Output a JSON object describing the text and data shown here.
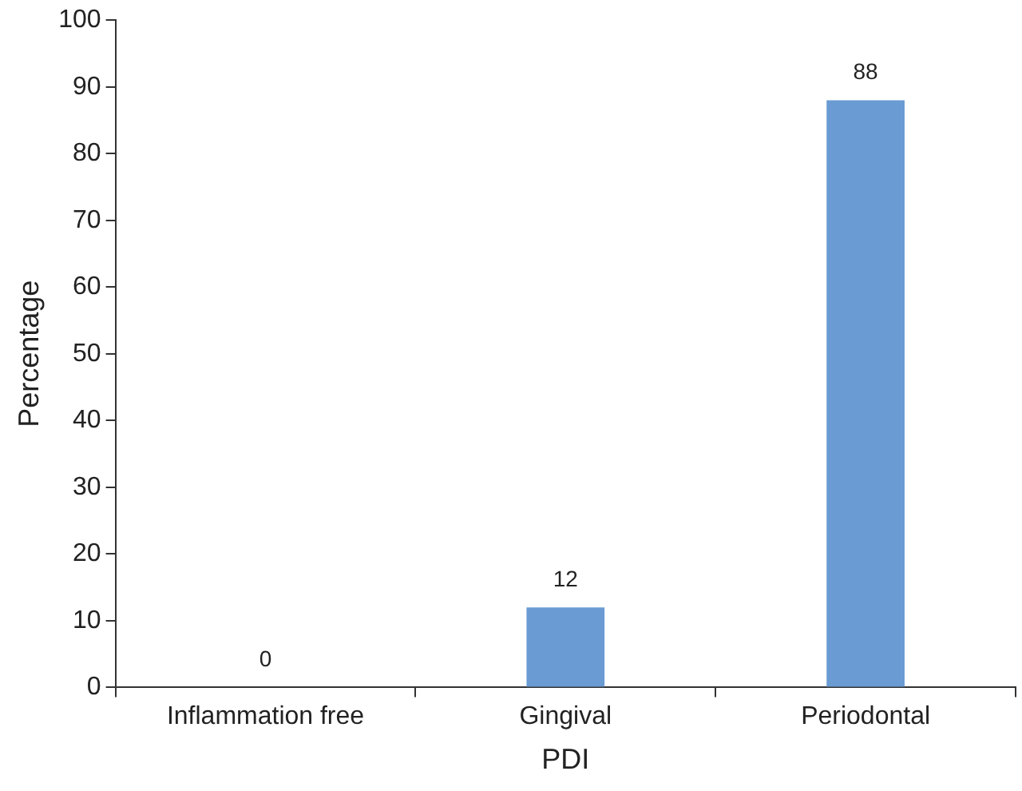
{
  "chart_data": {
    "type": "bar",
    "xlabel": "PDI",
    "ylabel": "Percentage",
    "categories": [
      "Inflammation free",
      "Gingival",
      "Periodontal"
    ],
    "values": [
      0,
      12,
      88
    ],
    "color": "#6a9bd3",
    "ylim": [
      0,
      100
    ],
    "yticks": [
      0,
      10,
      20,
      30,
      40,
      50,
      60,
      70,
      80,
      90,
      100
    ],
    "grid": false,
    "legend": false,
    "data_labels": true
  }
}
